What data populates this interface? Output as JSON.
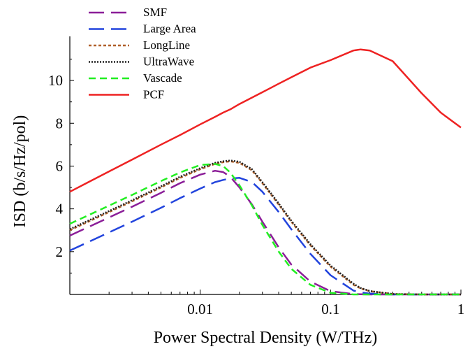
{
  "chart_data": {
    "type": "line",
    "title": "",
    "xlabel": "Power Spectral Density (W/THz)",
    "ylabel": "ISD (b/s/Hz/pol)",
    "x_scale": "log",
    "xlim": [
      0.001,
      1.0
    ],
    "ylim": [
      0,
      11.8
    ],
    "x_ticks": [
      0.01,
      0.1,
      1
    ],
    "x_tick_labels": [
      "0.01",
      "0.1",
      "1"
    ],
    "y_ticks": [
      2,
      4,
      6,
      8,
      10
    ],
    "y_tick_labels": [
      "2",
      "4",
      "6",
      "8",
      "10"
    ],
    "legend_position": "top-left",
    "grid": false,
    "x": [
      0.001,
      0.002,
      0.003,
      0.005,
      0.007,
      0.01,
      0.013,
      0.015,
      0.017,
      0.02,
      0.025,
      0.03,
      0.04,
      0.05,
      0.07,
      0.1,
      0.15,
      0.17,
      0.2,
      0.3,
      0.5,
      0.7,
      1.0
    ],
    "series": [
      {
        "name": "SMF",
        "color": "#8b1e98",
        "dash": "22 10",
        "width": 2.5,
        "values": [
          2.75,
          3.6,
          4.1,
          4.75,
          5.2,
          5.6,
          5.78,
          5.72,
          5.5,
          5.0,
          4.2,
          3.4,
          2.2,
          1.4,
          0.6,
          0.15,
          0.02,
          0.01,
          0.0,
          0.0,
          0.0,
          0.0,
          0.0
        ]
      },
      {
        "name": "Large Area",
        "color": "#2244dd",
        "dash": "22 10",
        "width": 2.5,
        "values": [
          2.05,
          2.9,
          3.4,
          4.05,
          4.5,
          4.95,
          5.25,
          5.35,
          5.42,
          5.45,
          5.25,
          4.8,
          3.85,
          3.05,
          1.9,
          0.9,
          0.18,
          0.1,
          0.04,
          0.0,
          0.0,
          0.0,
          0.0
        ]
      },
      {
        "name": "LongLine",
        "color": "#b0602a",
        "dash": "4 3",
        "width": 2.5,
        "values": [
          3.0,
          3.85,
          4.35,
          5.0,
          5.45,
          5.85,
          6.1,
          6.18,
          6.22,
          6.15,
          5.8,
          5.2,
          4.2,
          3.4,
          2.3,
          1.3,
          0.45,
          0.28,
          0.15,
          0.02,
          0.0,
          0.0,
          0.0
        ]
      },
      {
        "name": "UltraWave",
        "color": "#222222",
        "dash": "2 2",
        "width": 2.5,
        "values": [
          3.05,
          3.9,
          4.4,
          5.05,
          5.5,
          5.9,
          6.15,
          6.22,
          6.26,
          6.2,
          5.85,
          5.25,
          4.25,
          3.45,
          2.35,
          1.35,
          0.5,
          0.3,
          0.16,
          0.02,
          0.0,
          0.0,
          0.0
        ]
      },
      {
        "name": "Vascade",
        "color": "#22ee22",
        "dash": "10 6",
        "width": 2.5,
        "values": [
          3.3,
          4.15,
          4.65,
          5.3,
          5.7,
          6.05,
          6.1,
          6.0,
          5.7,
          5.1,
          4.15,
          3.25,
          2.0,
          1.2,
          0.45,
          0.08,
          0.0,
          0.0,
          0.0,
          0.0,
          0.0,
          0.0,
          0.0
        ]
      },
      {
        "name": "PCF",
        "color": "#ee2222",
        "dash": "",
        "width": 2.5,
        "values": [
          4.8,
          5.75,
          6.3,
          7.0,
          7.45,
          7.95,
          8.3,
          8.5,
          8.65,
          8.9,
          9.2,
          9.45,
          9.85,
          10.15,
          10.6,
          10.95,
          11.4,
          11.45,
          11.4,
          10.9,
          9.4,
          8.5,
          7.8
        ]
      }
    ]
  }
}
